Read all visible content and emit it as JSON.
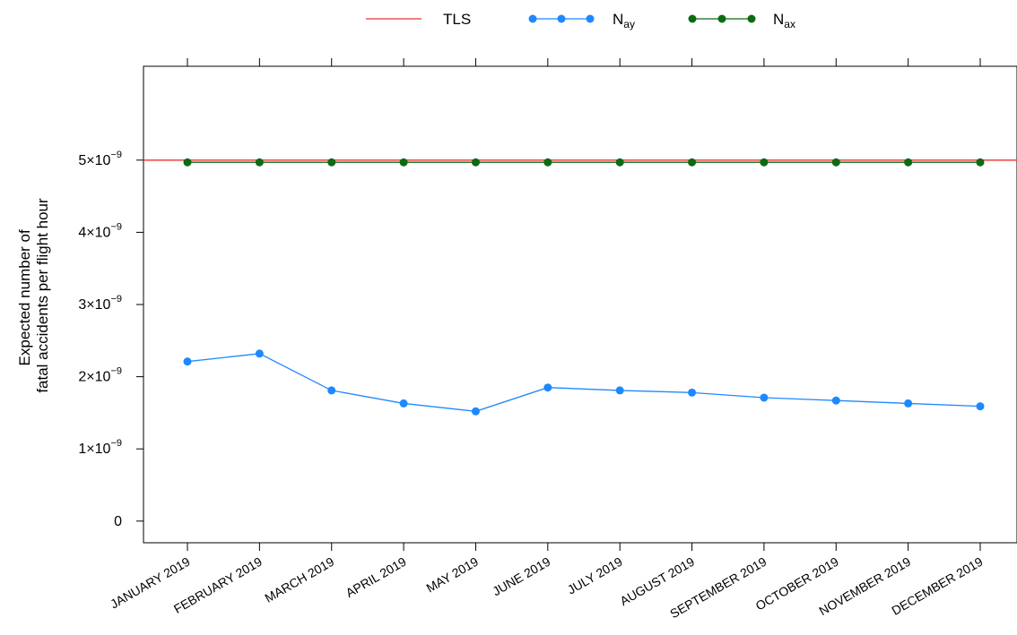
{
  "chart_data": {
    "type": "line",
    "ylabel_lines": [
      "Expected number of",
      "fatal accidents per flight hour"
    ],
    "xlabel": "",
    "categories": [
      "JANUARY 2019",
      "FEBRUARY 2019",
      "MARCH 2019",
      "APRIL 2019",
      "MAY 2019",
      "JUNE 2019",
      "JULY 2019",
      "AUGUST 2019",
      "SEPTEMBER 2019",
      "OCTOBER 2019",
      "NOVEMBER 2019",
      "DECEMBER 2019"
    ],
    "ylim": [
      -3e-10,
      6.3e-09
    ],
    "yticks": [
      {
        "value": 0,
        "mantissa": "0",
        "exp": ""
      },
      {
        "value": 1e-09,
        "mantissa": "1×10",
        "exp": "−9"
      },
      {
        "value": 2e-09,
        "mantissa": "2×10",
        "exp": "−9"
      },
      {
        "value": 3e-09,
        "mantissa": "3×10",
        "exp": "−9"
      },
      {
        "value": 4e-09,
        "mantissa": "4×10",
        "exp": "−9"
      },
      {
        "value": 5e-09,
        "mantissa": "5×10",
        "exp": "−9"
      }
    ],
    "grid": false,
    "legend_position": "top-center",
    "series": [
      {
        "name": "TLS",
        "name_main": "TLS",
        "name_sub": "",
        "kind": "reference-line",
        "color": "#e8322e",
        "values": [
          5e-09,
          5e-09,
          5e-09,
          5e-09,
          5e-09,
          5e-09,
          5e-09,
          5e-09,
          5e-09,
          5e-09,
          5e-09,
          5e-09
        ]
      },
      {
        "name": "Nay",
        "name_main": "N",
        "name_sub": "ay",
        "kind": "line-marker",
        "color": "#1e88ff",
        "values": [
          2.21e-09,
          2.32e-09,
          1.81e-09,
          1.63e-09,
          1.52e-09,
          1.85e-09,
          1.81e-09,
          1.78e-09,
          1.71e-09,
          1.67e-09,
          1.63e-09,
          1.59e-09
        ]
      },
      {
        "name": "Nax",
        "name_main": "N",
        "name_sub": "ax",
        "kind": "line-marker",
        "color": "#0b6b12",
        "values": [
          4.97e-09,
          4.97e-09,
          4.97e-09,
          4.97e-09,
          4.97e-09,
          4.97e-09,
          4.97e-09,
          4.97e-09,
          4.97e-09,
          4.97e-09,
          4.97e-09,
          4.97e-09
        ]
      }
    ]
  }
}
